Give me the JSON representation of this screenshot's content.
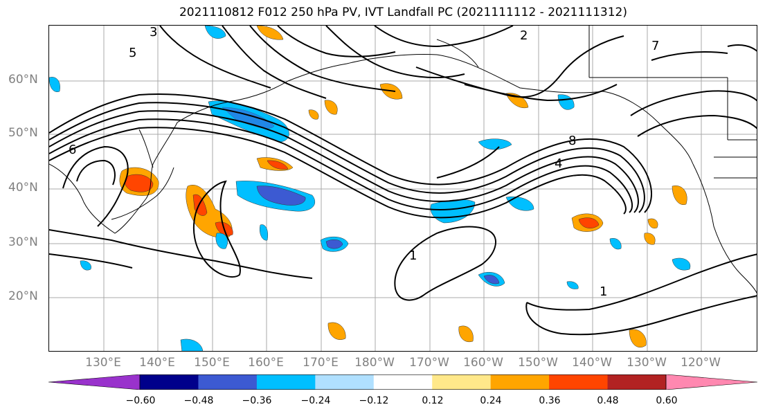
{
  "title": "2021110812 F012 250 hPa PV, IVT Landfall PC (2021111112 - 2021111312)",
  "map": {
    "lat_labels": [
      "60°N",
      "50°N",
      "40°N",
      "30°N",
      "20°N"
    ],
    "lon_labels": [
      "130°E",
      "140°E",
      "150°E",
      "160°E",
      "170°E",
      "180°W",
      "170°W",
      "160°W",
      "150°W",
      "140°W",
      "130°W",
      "120°W"
    ],
    "contour_labels": [
      "1",
      "1",
      "2",
      "3",
      "4",
      "5",
      "6",
      "7",
      "8"
    ],
    "grid": true
  },
  "colorbar": {
    "colors": [
      "#9932cc",
      "#00008b",
      "#3c5ad2",
      "#00bfff",
      "#b0e0ff",
      "#ffffff",
      "#ffe88a",
      "#ffa500",
      "#ff4500",
      "#b22222",
      "#ff88b0"
    ],
    "tick_labels": [
      "−0.60",
      "−0.48",
      "−0.36",
      "−0.24",
      "−0.12",
      "0.12",
      "0.24",
      "0.36",
      "0.48",
      "0.60"
    ]
  }
}
